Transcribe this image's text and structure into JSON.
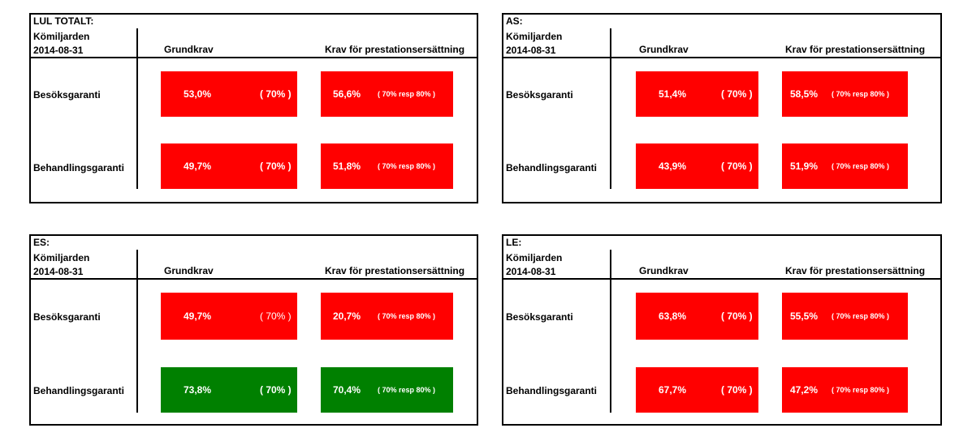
{
  "colors": {
    "fail": "#ff0000",
    "pass": "#008000"
  },
  "panels": [
    {
      "title": "LUL TOTALT:",
      "sub1": "Kömiljarden",
      "sub2": "2014-08-31",
      "col1": "Grundkrav",
      "col2": "Krav för prestationsersättning",
      "rows": [
        {
          "label": "Besöksgaranti",
          "grund": "53,0%",
          "grund_req": "( 70% )",
          "krav": "56,6%",
          "krav_req": "( 70% resp 80% )",
          "status": "fail"
        },
        {
          "label": "Behandlingsgaranti",
          "grund": "49,7%",
          "grund_req": "( 70% )",
          "krav": "51,8%",
          "krav_req": "( 70% resp 80% )",
          "status": "fail"
        }
      ]
    },
    {
      "title": "AS:",
      "sub1": "Kömiljarden",
      "sub2": "2014-08-31",
      "col1": "Grundkrav",
      "col2": "Krav för prestationsersättning",
      "rows": [
        {
          "label": "Besöksgaranti",
          "grund": "51,4%",
          "grund_req": "( 70% )",
          "krav": "58,5%",
          "krav_req": "( 70% resp 80% )",
          "status": "fail"
        },
        {
          "label": "Behandlingsgaranti",
          "grund": "43,9%",
          "grund_req": "( 70% )",
          "krav": "51,9%",
          "krav_req": "( 70% resp 80% )",
          "status": "fail"
        }
      ]
    },
    {
      "title": "ES:",
      "sub1": "Kömiljarden",
      "sub2": "2014-08-31",
      "col1": "Grundkrav",
      "col2": "Krav för prestationsersättning",
      "rows": [
        {
          "label": "Besöksgaranti",
          "grund": "49,7%",
          "grund_req": "( 70% )",
          "krav": "20,7%",
          "krav_req": "( 70% resp 80% )",
          "status": "fail"
        },
        {
          "label": "Behandlingsgaranti",
          "grund": "73,8%",
          "grund_req": "( 70% )",
          "krav": "70,4%",
          "krav_req": "( 70% resp 80% )",
          "status": "pass"
        }
      ]
    },
    {
      "title": "LE:",
      "sub1": "Kömiljarden",
      "sub2": "2014-08-31",
      "col1": "Grundkrav",
      "col2": "Krav för prestationsersättning",
      "rows": [
        {
          "label": "Besöksgaranti",
          "grund": "63,8%",
          "grund_req": "( 70% )",
          "krav": "55,5%",
          "krav_req": "( 70% resp 80% )",
          "status": "fail"
        },
        {
          "label": "Behandlingsgaranti",
          "grund": "67,7%",
          "grund_req": "( 70% )",
          "krav": "47,2%",
          "krav_req": "( 70% resp 80% )",
          "status": "fail"
        }
      ]
    }
  ]
}
